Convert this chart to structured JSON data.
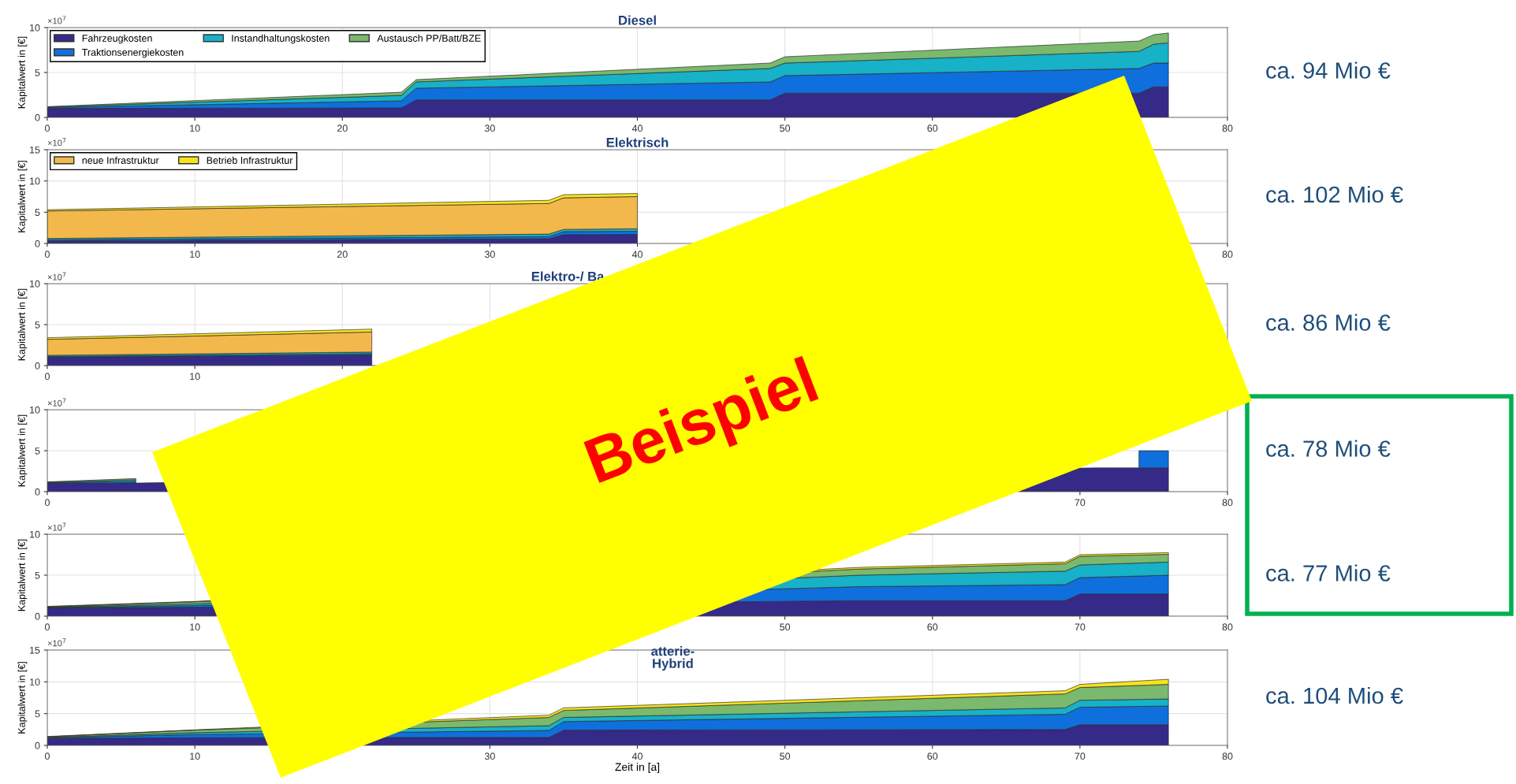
{
  "chart_data": [
    {
      "type": "area",
      "stacked": true,
      "title": "Diesel",
      "ylabel": "Kapitalwert in [€]",
      "annotations": [
        "×10$^{7}$",
        "ca. 94 Mio €"
      ],
      "legend": "top left",
      "grid": true,
      "x": [
        0,
        24,
        25,
        49,
        50,
        74,
        75,
        76
      ],
      "xlim": [
        0,
        80
      ],
      "xticks": [
        0,
        10,
        20,
        30,
        40,
        50,
        60,
        {
          "value": 70,
          "label": null
        },
        80
      ],
      "ylim": [
        0,
        10
      ],
      "yticks": [
        0,
        5,
        10
      ],
      "series": [
        {
          "name": "Fahrzeugkosten",
          "color": "#352a87",
          "values": [
            1.0,
            1.05,
            1.95,
            1.95,
            2.7,
            2.7,
            3.4,
            3.4
          ]
        },
        {
          "name": "Traktionsenergiekosten",
          "color": "#0f6fdc",
          "values": [
            0.1,
            0.8,
            1.3,
            2.0,
            1.95,
            2.75,
            2.65,
            2.65
          ]
        },
        {
          "name": "Instandhaltungskosten",
          "color": "#17b1c8",
          "values": [
            0.05,
            0.6,
            0.7,
            1.5,
            1.4,
            1.9,
            2.1,
            2.25
          ]
        },
        {
          "name": "Austausch PP/Batt/BZE",
          "color": "#7ab96e",
          "values": [
            0.05,
            0.35,
            0.25,
            0.6,
            0.7,
            1.15,
            1.05,
            1.1
          ]
        }
      ]
    },
    {
      "type": "area",
      "stacked": true,
      "title": "Elektrisch",
      "ylabel": "Kapitalwert in [€]",
      "annotations": [
        "×10$^{7}$",
        "ca. 102 Mio €"
      ],
      "legend": "top left",
      "grid": true,
      "x": [
        0,
        34,
        35,
        40
      ],
      "xlim": [
        0,
        80
      ],
      "xticks": [
        0,
        10,
        20,
        30,
        40,
        {
          "value": 50,
          "label": null
        },
        {
          "value": 60,
          "label": null
        },
        {
          "value": 70,
          "label": null
        },
        80
      ],
      "ylim": [
        0,
        15
      ],
      "yticks": [
        0,
        5,
        10,
        15
      ],
      "series": [
        {
          "color": "#352a87",
          "values": [
            0.4,
            0.75,
            1.4,
            1.45
          ]
        },
        {
          "color": "#0f6fdc",
          "values": [
            0.2,
            0.35,
            0.5,
            0.5
          ]
        },
        {
          "color": "#17b1c8",
          "values": [
            0.2,
            0.4,
            0.35,
            0.4
          ]
        },
        {
          "name": "neue Infrastruktur",
          "color": "#f2b84b",
          "values": [
            4.4,
            4.9,
            5.05,
            5.15
          ]
        },
        {
          "name": "Betrieb Infrastruktur",
          "color": "#f7e31d",
          "values": [
            0.2,
            0.5,
            0.5,
            0.5
          ]
        }
      ]
    },
    {
      "type": "area",
      "stacked": true,
      "title": "Elektro-/ Ba",
      "ylabel": "Kapitalwert in [€]",
      "annotations": [
        "×10$^{7}$",
        "ca. 86 Mio €"
      ],
      "grid": true,
      "x": [
        0,
        22
      ],
      "xlim": [
        0,
        80
      ],
      "xticks": [
        0,
        10,
        {
          "value": 20,
          "label": null
        },
        {
          "value": 30,
          "label": null
        },
        {
          "value": 40,
          "label": null
        },
        {
          "value": 50,
          "label": null
        },
        {
          "value": 60,
          "label": null
        },
        {
          "value": 70,
          "label": null
        },
        {
          "value": 80,
          "label": null
        }
      ],
      "ylim": [
        0,
        10
      ],
      "yticks": [
        0,
        5,
        10
      ],
      "series": [
        {
          "color": "#352a87",
          "values": [
            1.0,
            1.3
          ]
        },
        {
          "color": "#0f6fdc",
          "values": [
            0.1,
            0.15
          ]
        },
        {
          "color": "#17b1c8",
          "values": [
            0.15,
            0.2
          ]
        },
        {
          "color": "#f2b84b",
          "values": [
            1.95,
            2.45
          ]
        },
        {
          "color": "#f7e31d",
          "values": [
            0.2,
            0.35
          ]
        }
      ]
    },
    {
      "type": "area",
      "stacked": true,
      "ylabel": "Kapitalwert in [€]",
      "annotations": [
        "×10$^{7}$",
        "ca. 78 Mio €",
        "Beispiel"
      ],
      "grid": true,
      "x": [
        0,
        6,
        71,
        74,
        76
      ],
      "xlim": [
        0,
        80
      ],
      "xticks": [
        0,
        {
          "value": 10,
          "label": null
        },
        {
          "value": 20,
          "label": null
        },
        {
          "value": 30,
          "label": null
        },
        {
          "value": 40,
          "label": null
        },
        {
          "value": 50,
          "label": null
        },
        {
          "value": 60,
          "label": null
        },
        70,
        80
      ],
      "ylim": [
        0,
        10
      ],
      "yticks": [
        0,
        5,
        10
      ],
      "series": [
        {
          "color": "#352a87",
          "values": [
            1.0,
            1.05,
            2.9,
            2.9,
            2.9
          ]
        },
        {
          "color": "#0f6fdc",
          "values": [
            0.1,
            0.2,
            null,
            2.1,
            2.1
          ]
        },
        {
          "color": "#17b1c8",
          "values": [
            0.05,
            0.2,
            null,
            null,
            null
          ]
        },
        {
          "color": "#7ab96e",
          "values": [
            0.05,
            0.15,
            null,
            null,
            null
          ]
        }
      ]
    },
    {
      "type": "area",
      "stacked": true,
      "ylabel": "Kapitalwert in [€]",
      "annotations": [
        "×10$^{7}$",
        "ca. 77 Mio €"
      ],
      "grid": true,
      "x": [
        0,
        10,
        55,
        69,
        70,
        76
      ],
      "xlim": [
        0,
        80
      ],
      "xticks": [
        0,
        10,
        {
          "value": 20,
          "label": null
        },
        {
          "value": 30,
          "label": null
        },
        {
          "value": 40,
          "label": null
        },
        50,
        60,
        70,
        80
      ],
      "ylim": [
        0,
        10
      ],
      "yticks": [
        0,
        5,
        10
      ],
      "series": [
        {
          "color": "#352a87",
          "values": [
            1.0,
            1.1,
            1.9,
            1.9,
            2.7,
            2.7
          ]
        },
        {
          "color": "#0f6fdc",
          "values": [
            0.05,
            0.2,
            1.7,
            1.95,
            2.0,
            2.3
          ]
        },
        {
          "color": "#17b1c8",
          "values": [
            0.05,
            0.2,
            1.4,
            1.65,
            1.55,
            1.6
          ]
        },
        {
          "color": "#7ab96e",
          "values": [
            0.05,
            0.25,
            0.75,
            0.9,
            1.05,
            0.95
          ]
        },
        {
          "color": "#f7e31d",
          "values": [
            0.05,
            0.05,
            0.2,
            0.2,
            0.2,
            0.2
          ]
        }
      ]
    },
    {
      "type": "area",
      "stacked": true,
      "title": "atterie-\nHybrid",
      "xlabel": "Zeit in [a]",
      "ylabel": "Kapitalwert in [€]",
      "annotations": [
        "×10$^{7}$",
        "ca. 104 Mio €"
      ],
      "grid": true,
      "x": [
        0,
        10,
        34,
        35,
        69,
        70,
        76
      ],
      "xlim": [
        0,
        80
      ],
      "xticks": [
        0,
        10,
        {
          "value": 20,
          "label": null
        },
        30,
        40,
        50,
        60,
        70,
        80
      ],
      "ylim": [
        0,
        15
      ],
      "yticks": [
        0,
        5,
        10,
        15
      ],
      "series": [
        {
          "color": "#352a87",
          "values": [
            1.1,
            1.2,
            1.25,
            2.4,
            2.5,
            3.25,
            3.25
          ]
        },
        {
          "color": "#0f6fdc",
          "values": [
            0.1,
            0.5,
            1.1,
            1.35,
            2.4,
            2.75,
            2.95
          ]
        },
        {
          "color": "#17b1c8",
          "values": [
            0.05,
            0.3,
            0.75,
            0.65,
            1.0,
            1.1,
            1.1
          ]
        },
        {
          "color": "#7ab96e",
          "values": [
            0.1,
            0.4,
            1.3,
            1.1,
            2.2,
            2.0,
            2.3
          ]
        },
        {
          "color": "#f7e31d",
          "values": [
            0.05,
            0.05,
            0.35,
            0.4,
            0.5,
            0.5,
            0.8
          ]
        }
      ]
    }
  ]
}
